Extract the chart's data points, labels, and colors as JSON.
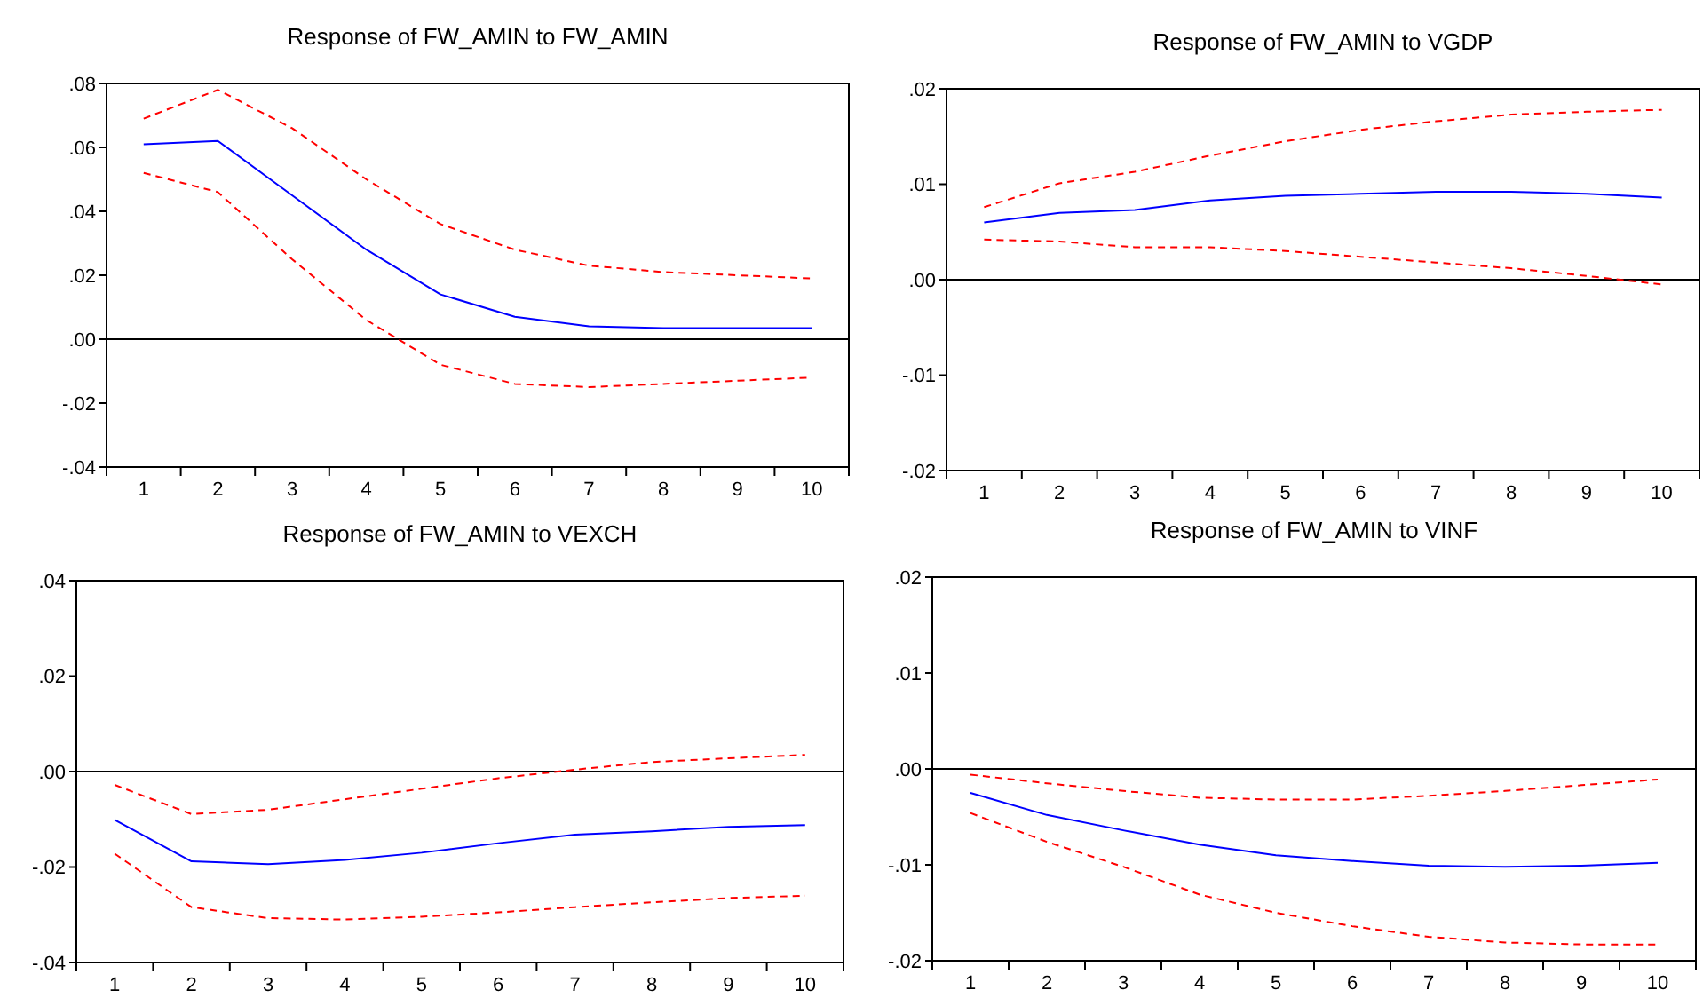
{
  "chart_data": [
    {
      "type": "line",
      "title": "Response of FW_AMIN to FW_AMIN",
      "categories": [
        "1",
        "2",
        "3",
        "4",
        "5",
        "6",
        "7",
        "8",
        "9",
        "10"
      ],
      "ylim": [
        -0.04,
        0.08
      ],
      "yticks": [
        {
          "value": -0.04,
          "label": "-.04"
        },
        {
          "value": -0.02,
          "label": "-.02"
        },
        {
          "value": 0,
          "label": ".00"
        },
        {
          "value": 0.02,
          "label": ".02"
        },
        {
          "value": 0.04,
          "label": ".04"
        },
        {
          "value": 0.06,
          "label": ".06"
        },
        {
          "value": 0.08,
          "label": ".08"
        }
      ],
      "grid": false,
      "ref_lines": [
        {
          "axis": "y",
          "value": 0,
          "color": "#000000"
        }
      ],
      "series": [
        {
          "color": "#0000ff",
          "line_style": "solid",
          "values": [
            0.061,
            0.062,
            0.045,
            0.028,
            0.014,
            0.007,
            0.004,
            0.0035,
            0.0035,
            0.0035
          ]
        },
        {
          "color": "#ff0000",
          "line_style": "dashed",
          "values": [
            0.069,
            0.078,
            0.066,
            0.05,
            0.036,
            0.028,
            0.023,
            0.021,
            0.02,
            0.019
          ]
        },
        {
          "color": "#ff0000",
          "line_style": "dashed",
          "values": [
            0.052,
            0.046,
            0.025,
            0.006,
            -0.008,
            -0.014,
            -0.015,
            -0.014,
            -0.013,
            -0.012
          ]
        }
      ]
    },
    {
      "type": "line",
      "title": "Response of FW_AMIN to VGDP",
      "categories": [
        "1",
        "2",
        "3",
        "4",
        "5",
        "6",
        "7",
        "8",
        "9",
        "10"
      ],
      "ylim": [
        -0.02,
        0.02
      ],
      "yticks": [
        {
          "value": -0.02,
          "label": "-.02"
        },
        {
          "value": -0.01,
          "label": "-.01"
        },
        {
          "value": 0,
          "label": ".00"
        },
        {
          "value": 0.01,
          "label": ".01"
        },
        {
          "value": 0.02,
          "label": ".02"
        }
      ],
      "grid": false,
      "ref_lines": [
        {
          "axis": "y",
          "value": 0,
          "color": "#000000"
        }
      ],
      "series": [
        {
          "color": "#0000ff",
          "line_style": "solid",
          "values": [
            0.006,
            0.007,
            0.0073,
            0.0083,
            0.0088,
            0.009,
            0.0092,
            0.0092,
            0.009,
            0.0086
          ]
        },
        {
          "color": "#ff0000",
          "line_style": "dashed",
          "values": [
            0.0076,
            0.0101,
            0.0113,
            0.013,
            0.0145,
            0.0157,
            0.0166,
            0.0173,
            0.0176,
            0.0178
          ]
        },
        {
          "color": "#ff0000",
          "line_style": "dashed",
          "values": [
            0.0042,
            0.004,
            0.0034,
            0.0034,
            0.003,
            0.0024,
            0.0018,
            0.0012,
            0.0004,
            -0.0005
          ]
        }
      ]
    },
    {
      "type": "line",
      "title": "Response of FW_AMIN to VEXCH",
      "categories": [
        "1",
        "2",
        "3",
        "4",
        "5",
        "6",
        "7",
        "8",
        "9",
        "10"
      ],
      "ylim": [
        -0.04,
        0.04
      ],
      "yticks": [
        {
          "value": -0.04,
          "label": "-.04"
        },
        {
          "value": -0.02,
          "label": "-.02"
        },
        {
          "value": 0,
          "label": ".00"
        },
        {
          "value": 0.02,
          "label": ".02"
        },
        {
          "value": 0.04,
          "label": ".04"
        }
      ],
      "grid": false,
      "ref_lines": [
        {
          "axis": "y",
          "value": 0,
          "color": "#000000"
        }
      ],
      "series": [
        {
          "color": "#0000ff",
          "line_style": "solid",
          "values": [
            -0.0101,
            -0.0188,
            -0.0194,
            -0.0185,
            -0.017,
            -0.015,
            -0.0132,
            -0.0125,
            -0.0116,
            -0.0112
          ]
        },
        {
          "color": "#ff0000",
          "line_style": "dashed",
          "values": [
            -0.0028,
            -0.0089,
            -0.008,
            -0.0058,
            -0.0036,
            -0.0014,
            0.0004,
            0.002,
            0.0028,
            0.0035
          ]
        },
        {
          "color": "#ff0000",
          "line_style": "dashed",
          "values": [
            -0.0172,
            -0.0284,
            -0.0307,
            -0.031,
            -0.0304,
            -0.0295,
            -0.0284,
            -0.0274,
            -0.0265,
            -0.026
          ]
        }
      ]
    },
    {
      "type": "line",
      "title": "Response of FW_AMIN to VINF",
      "categories": [
        "1",
        "2",
        "3",
        "4",
        "5",
        "6",
        "7",
        "8",
        "9",
        "10"
      ],
      "ylim": [
        -0.02,
        0.02
      ],
      "yticks": [
        {
          "value": -0.02,
          "label": "-.02"
        },
        {
          "value": -0.01,
          "label": "-.01"
        },
        {
          "value": 0,
          "label": ".00"
        },
        {
          "value": 0.01,
          "label": ".01"
        },
        {
          "value": 0.02,
          "label": ".02"
        }
      ],
      "grid": false,
      "ref_lines": [
        {
          "axis": "y",
          "value": 0,
          "color": "#000000"
        }
      ],
      "series": [
        {
          "color": "#0000ff",
          "line_style": "solid",
          "values": [
            -0.0025,
            -0.0048,
            -0.0064,
            -0.0079,
            -0.009,
            -0.0096,
            -0.0101,
            -0.0102,
            -0.0101,
            -0.0098
          ]
        },
        {
          "color": "#ff0000",
          "line_style": "dashed",
          "values": [
            -0.0006,
            -0.0015,
            -0.0023,
            -0.003,
            -0.0032,
            -0.0032,
            -0.0028,
            -0.0023,
            -0.0017,
            -0.0011
          ]
        },
        {
          "color": "#ff0000",
          "line_style": "dashed",
          "values": [
            -0.0046,
            -0.0076,
            -0.0102,
            -0.0131,
            -0.015,
            -0.0164,
            -0.0175,
            -0.0181,
            -0.0183,
            -0.0183
          ]
        }
      ]
    }
  ]
}
